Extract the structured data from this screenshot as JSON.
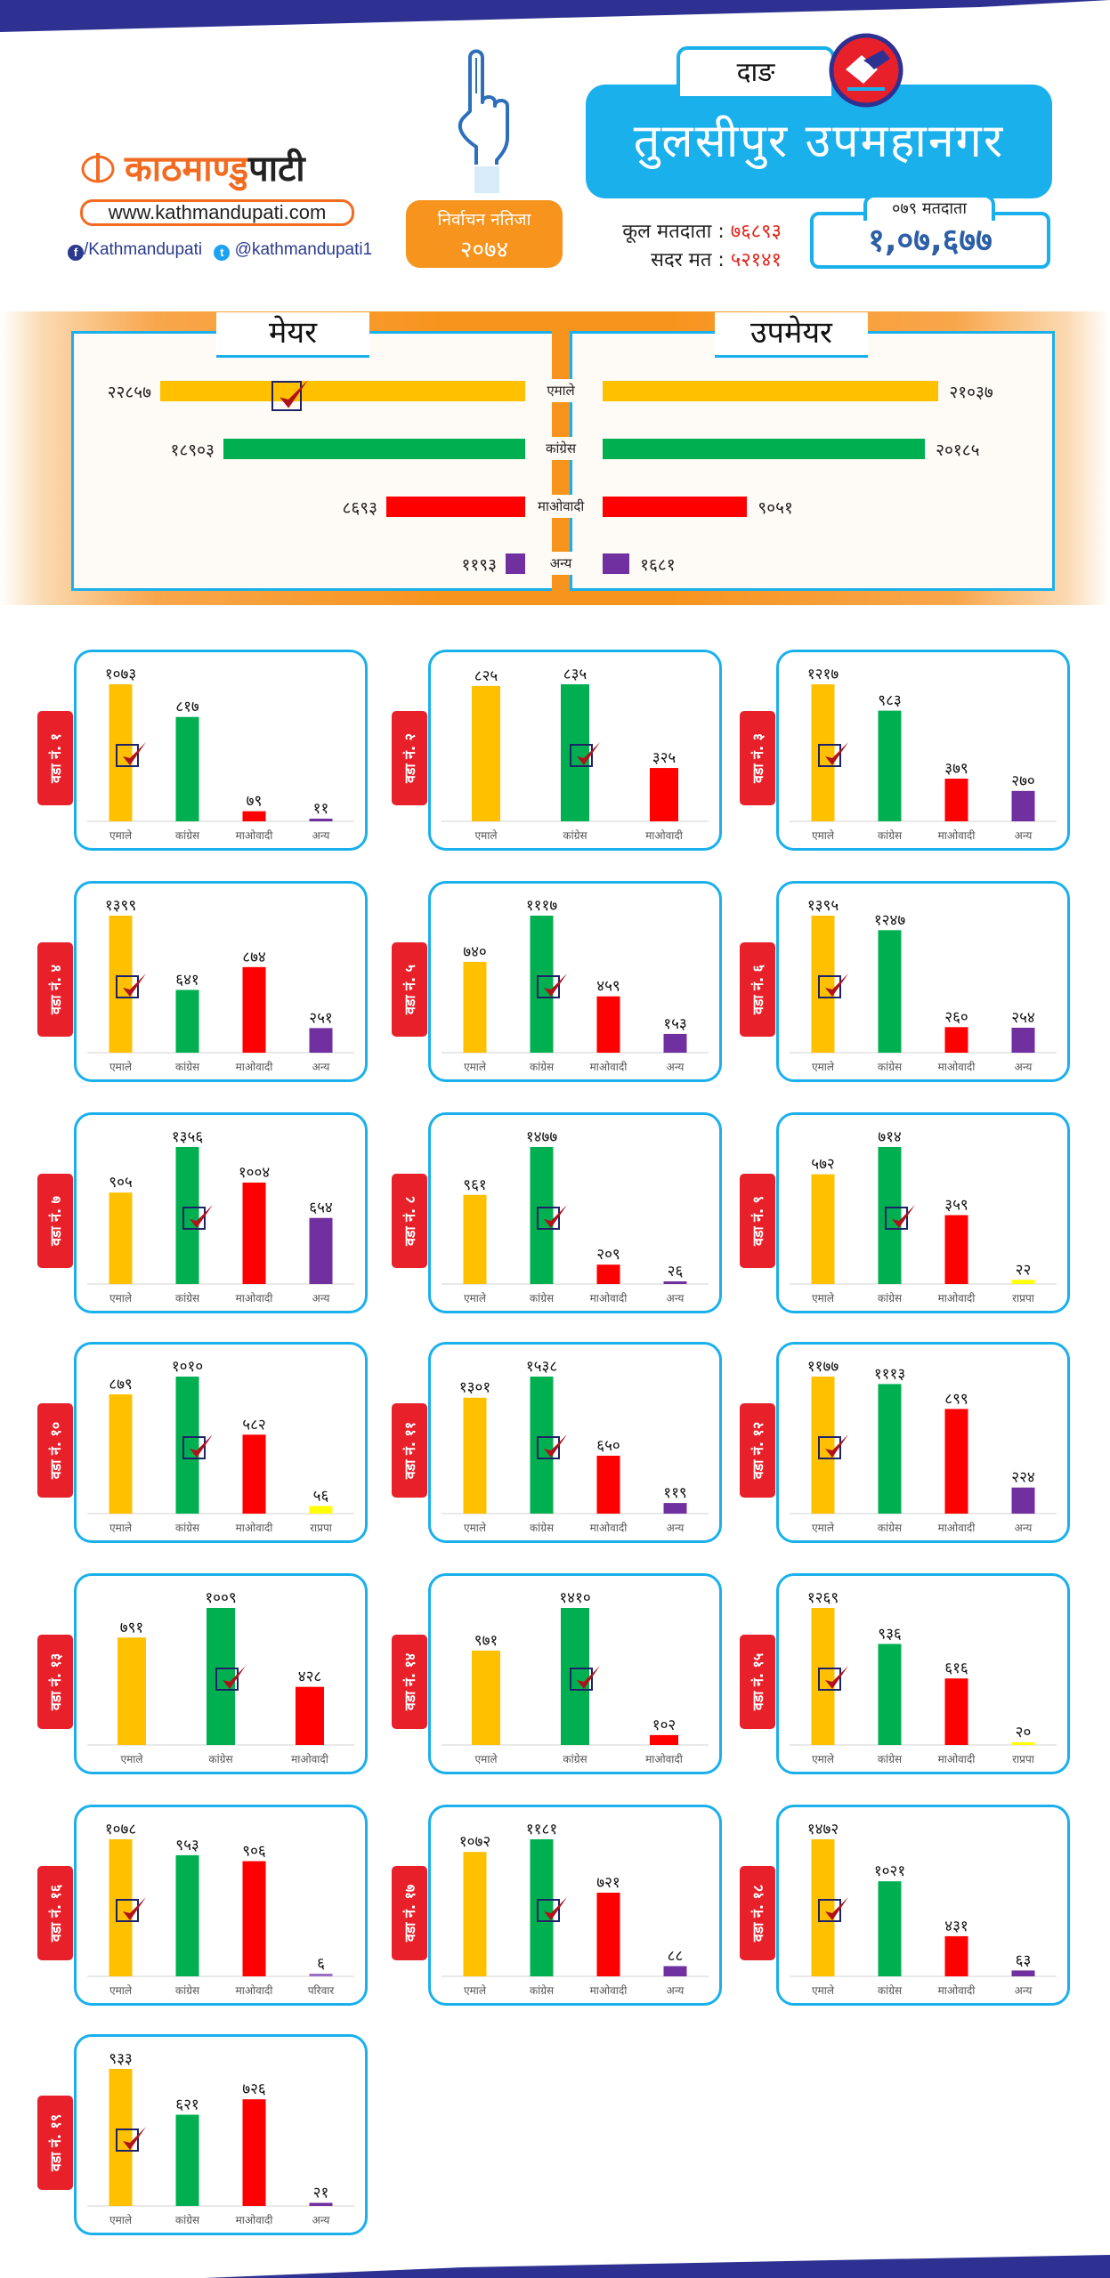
{
  "header": {
    "brand_name_part1": "काठमाण्डु",
    "brand_name_part2": "पाटी",
    "website": "www.kathmandupati.com",
    "facebook": "/Kathmandupati",
    "twitter": "@kathmandupati1",
    "result_badge_line1": "निर्वाचन नतिजा",
    "result_badge_line2": "२०७४",
    "district": "दाङ",
    "municipality": "तुलसीपुर उपमहानगर",
    "total_voters_label": "कूल मतदाता",
    "total_voters_value": "७६८९३",
    "valid_votes_label": "सदर मत",
    "valid_votes_value": "५२१४१",
    "voters_079_label": "०७९ मतदाता",
    "voters_079_value": "१,०७,६७७",
    "separator": ":"
  },
  "colors": {
    "एमाले": "#ffc000",
    "कांग्रेस": "#00b050",
    "माओवादी": "#ff0000",
    "अन्य": "#7030a0",
    "राप्रपा": "#ffff00",
    "परिवार": "#9b6fc4",
    "accent_blue": "#1ab0ec",
    "accent_orange": "#f7941d",
    "ward_tag_red": "#e8202a",
    "band_navy": "#2e3192"
  },
  "chart_data": [
    {
      "type": "bar",
      "orientation": "horizontal",
      "title": "मेयर",
      "categories": [
        "एमाले",
        "कांग्रेस",
        "माओवादी",
        "अन्य"
      ],
      "values": [
        22857,
        18903,
        8693,
        1193
      ],
      "labels": [
        "२२८५७",
        "१८९०३",
        "८६९३",
        "११९३"
      ],
      "winner": "एमाले"
    },
    {
      "type": "bar",
      "orientation": "horizontal",
      "title": "उपमेयर",
      "categories": [
        "एमाले",
        "कांग्रेस",
        "माओवादी",
        "अन्य"
      ],
      "values": [
        21037,
        20185,
        9051,
        1681
      ],
      "labels": [
        "२१०३७",
        "२०१८५",
        "९०५१",
        "१६८१"
      ]
    },
    {
      "type": "bar",
      "title": "वडा नं. १",
      "categories": [
        "एमाले",
        "कांग्रेस",
        "माओवादी",
        "अन्य"
      ],
      "values": [
        1073,
        817,
        79,
        11
      ],
      "labels": [
        "१०७३",
        "८१७",
        "७९",
        "११"
      ],
      "winner": 0
    },
    {
      "type": "bar",
      "title": "वडा नं. २",
      "categories": [
        "एमाले",
        "कांग्रेस",
        "माओवादी"
      ],
      "values": [
        825,
        835,
        325
      ],
      "labels": [
        "८२५",
        "८३५",
        "३२५"
      ],
      "winner": 1
    },
    {
      "type": "bar",
      "title": "वडा नं. ३",
      "categories": [
        "एमाले",
        "कांग्रेस",
        "माओवादी",
        "अन्य"
      ],
      "values": [
        1217,
        983,
        379,
        270
      ],
      "labels": [
        "१२१७",
        "९८३",
        "३७९",
        "२७०"
      ],
      "winner": 0
    },
    {
      "type": "bar",
      "title": "वडा नं. ४",
      "categories": [
        "एमाले",
        "कांग्रेस",
        "माओवादी",
        "अन्य"
      ],
      "values": [
        1399,
        641,
        874,
        251
      ],
      "labels": [
        "१३९९",
        "६४१",
        "८७४",
        "२५१"
      ],
      "winner": 0
    },
    {
      "type": "bar",
      "title": "वडा नं. ५",
      "categories": [
        "एमाले",
        "कांग्रेस",
        "माओवादी",
        "अन्य"
      ],
      "values": [
        740,
        1117,
        459,
        153
      ],
      "labels": [
        "७४०",
        "१११७",
        "४५९",
        "१५३"
      ],
      "winner": 1
    },
    {
      "type": "bar",
      "title": "वडा नं. ६",
      "categories": [
        "एमाले",
        "कांग्रेस",
        "माओवादी",
        "अन्य"
      ],
      "values": [
        1395,
        1247,
        260,
        254
      ],
      "labels": [
        "१३९५",
        "१२४७",
        "२६०",
        "२५४"
      ],
      "winner": 0
    },
    {
      "type": "bar",
      "title": "वडा नं. ७",
      "categories": [
        "एमाले",
        "कांग्रेस",
        "माओवादी",
        "अन्य"
      ],
      "values": [
        905,
        1356,
        1004,
        654
      ],
      "labels": [
        "९०५",
        "१३५६",
        "१००४",
        "६५४"
      ],
      "winner": 1
    },
    {
      "type": "bar",
      "title": "वडा नं. ८",
      "categories": [
        "एमाले",
        "कांग्रेस",
        "माओवादी",
        "अन्य"
      ],
      "values": [
        961,
        1477,
        209,
        26
      ],
      "labels": [
        "९६१",
        "१४७७",
        "२०९",
        "२६"
      ],
      "winner": 1
    },
    {
      "type": "bar",
      "title": "वडा नं. ९",
      "categories": [
        "एमाले",
        "कांग्रेस",
        "माओवादी",
        "राप्रपा"
      ],
      "values": [
        572,
        714,
        359,
        22
      ],
      "labels": [
        "५७२",
        "७१४",
        "३५९",
        "२२"
      ],
      "winner": 1
    },
    {
      "type": "bar",
      "title": "वडा नं. १०",
      "categories": [
        "एमाले",
        "कांग्रेस",
        "माओवादी",
        "राप्रपा"
      ],
      "values": [
        879,
        1010,
        582,
        56
      ],
      "labels": [
        "८७९",
        "१०१०",
        "५८२",
        "५६"
      ],
      "winner": 1
    },
    {
      "type": "bar",
      "title": "वडा नं. ११",
      "categories": [
        "एमाले",
        "कांग्रेस",
        "माओवादी",
        "अन्य"
      ],
      "values": [
        1301,
        1538,
        650,
        119
      ],
      "labels": [
        "१३०१",
        "१५३८",
        "६५०",
        "११९"
      ],
      "winner": 1
    },
    {
      "type": "bar",
      "title": "वडा नं. १२",
      "categories": [
        "एमाले",
        "कांग्रेस",
        "माओवादी",
        "अन्य"
      ],
      "values": [
        1177,
        1113,
        899,
        224
      ],
      "labels": [
        "११७७",
        "१११३",
        "८९९",
        "२२४"
      ],
      "winner": 0
    },
    {
      "type": "bar",
      "title": "वडा नं. १३",
      "categories": [
        "एमाले",
        "कांग्रेस",
        "माओवादी"
      ],
      "values": [
        791,
        1009,
        428
      ],
      "labels": [
        "७९१",
        "१००९",
        "४२८"
      ],
      "winner": 1
    },
    {
      "type": "bar",
      "title": "वडा नं. १४",
      "categories": [
        "एमाले",
        "कांग्रेस",
        "माओवादी"
      ],
      "values": [
        971,
        1410,
        102
      ],
      "labels": [
        "९७१",
        "१४१०",
        "१०२"
      ],
      "winner": 1
    },
    {
      "type": "bar",
      "title": "वडा नं. १५",
      "categories": [
        "एमाले",
        "कांग्रेस",
        "माओवादी",
        "राप्रपा"
      ],
      "values": [
        1269,
        936,
        616,
        20
      ],
      "labels": [
        "१२६९",
        "९३६",
        "६१६",
        "२०"
      ],
      "winner": 0
    },
    {
      "type": "bar",
      "title": "वडा नं. १६",
      "categories": [
        "एमाले",
        "कांग्रेस",
        "माओवादी",
        "परिवार"
      ],
      "values": [
        1078,
        953,
        906,
        6
      ],
      "labels": [
        "१०७८",
        "९५३",
        "९०६",
        "६"
      ],
      "winner": 0
    },
    {
      "type": "bar",
      "title": "वडा नं. १७",
      "categories": [
        "एमाले",
        "कांग्रेस",
        "माओवादी",
        "अन्य"
      ],
      "values": [
        1072,
        1181,
        721,
        88
      ],
      "labels": [
        "१०७२",
        "११८१",
        "७२१",
        "८८"
      ],
      "winner": 1
    },
    {
      "type": "bar",
      "title": "वडा नं. १८",
      "categories": [
        "एमाले",
        "कांग्रेस",
        "माओवादी",
        "अन्य"
      ],
      "values": [
        1472,
        1021,
        431,
        63
      ],
      "labels": [
        "१४७२",
        "१०२१",
        "४३१",
        "६३"
      ],
      "winner": 0
    },
    {
      "type": "bar",
      "title": "वडा नं. १९",
      "categories": [
        "एमाले",
        "कांग्रेस",
        "माओवादी",
        "अन्य"
      ],
      "values": [
        933,
        621,
        726,
        21
      ],
      "labels": [
        "९३३",
        "६२१",
        "७२६",
        "२१"
      ],
      "winner": 0
    }
  ]
}
